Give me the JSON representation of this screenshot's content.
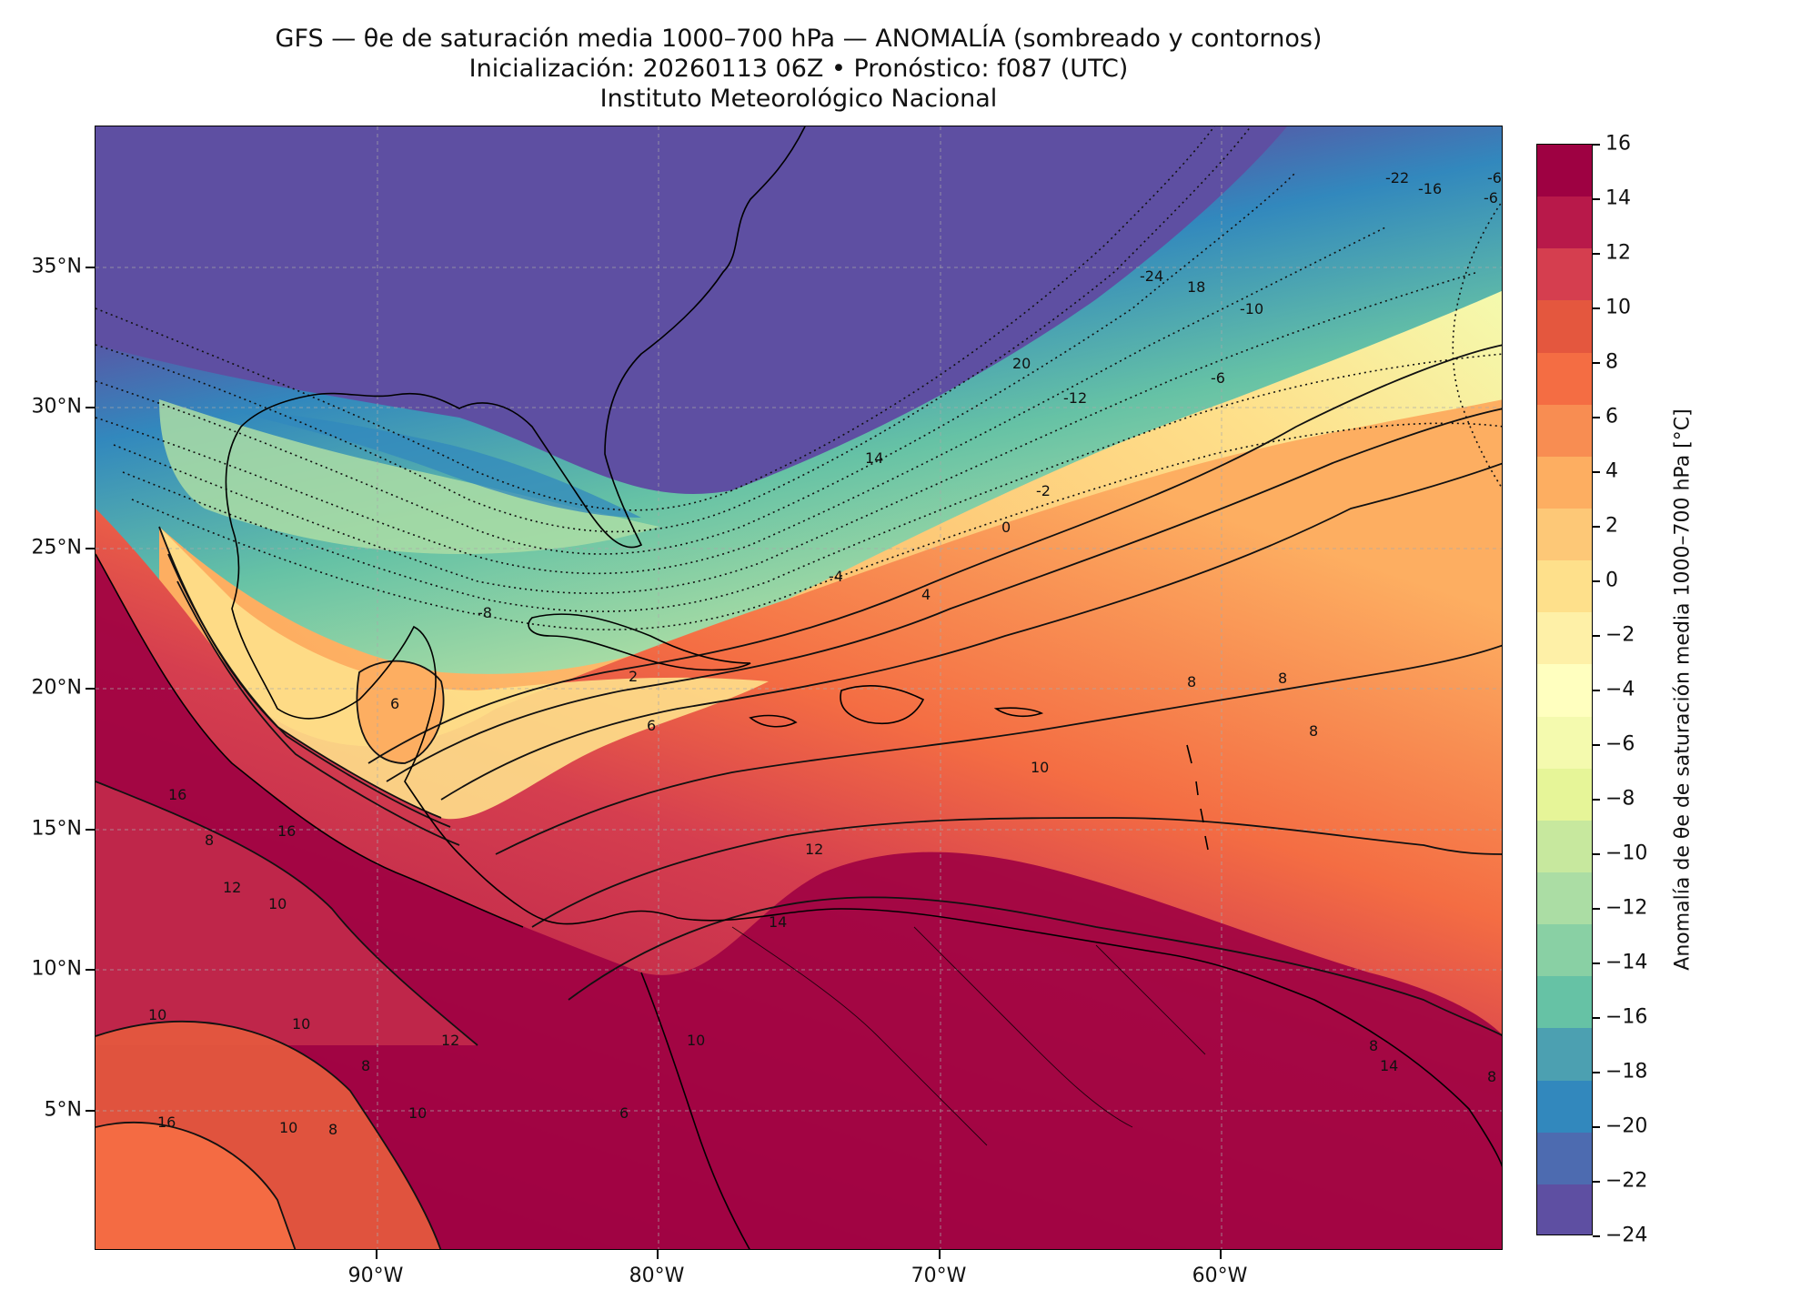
{
  "title": {
    "line1": "GFS — θe de saturación media 1000–700 hPa — ANOMALÍA (sombreado y contornos)",
    "line2": "Inicialización: 20260113 06Z   •   Pronóstico: f087 (UTC)",
    "line3": "Instituto Meteorológico Nacional"
  },
  "axes": {
    "lat_labels": [
      "35°N",
      "30°N",
      "25°N",
      "20°N",
      "15°N",
      "10°N",
      "5°N"
    ],
    "lon_labels": [
      "90°W",
      "80°W",
      "70°W",
      "60°W"
    ],
    "lon_range": [
      "100°W",
      "50°W"
    ],
    "lat_range": [
      "0°",
      "40°N"
    ],
    "grid": true
  },
  "colorbar": {
    "title": "Anomalía de θe de saturación media 1000–700 hPa [°C]",
    "tick_labels": [
      "16",
      "14",
      "12",
      "10",
      "8",
      "6",
      "4",
      "2",
      "0",
      "−2",
      "−4",
      "−6",
      "−8",
      "−10",
      "−12",
      "−14",
      "−16",
      "−18",
      "−20",
      "−22",
      "−24"
    ],
    "colors_top_to_bottom": [
      "#9e0142",
      "#b8194a",
      "#d53e4f",
      "#e4573e",
      "#f46d43",
      "#f88d52",
      "#fdae61",
      "#fdc877",
      "#fee08b",
      "#fef0a7",
      "#ffffbf",
      "#f4faae",
      "#e6f598",
      "#c7e89e",
      "#abdda4",
      "#89d0a4",
      "#66c2a5",
      "#4ca0b1",
      "#3288bd",
      "#4d6bb0",
      "#5e4fa2"
    ]
  },
  "contour_labels": [
    "-22",
    "-16",
    "-6",
    "-6",
    "-24",
    "18",
    "-10",
    "20",
    "-6",
    "-12",
    "14",
    "-2",
    "0",
    "4",
    "-4",
    "-8",
    "2",
    "6",
    "6",
    "8",
    "8",
    "8",
    "10",
    "12",
    "14",
    "16",
    "16",
    "8",
    "10",
    "12",
    "10",
    "10",
    "8",
    "10",
    "12",
    "10",
    "6",
    "8",
    "8",
    "10",
    "14",
    "16",
    "8"
  ],
  "legend_note": ""
}
